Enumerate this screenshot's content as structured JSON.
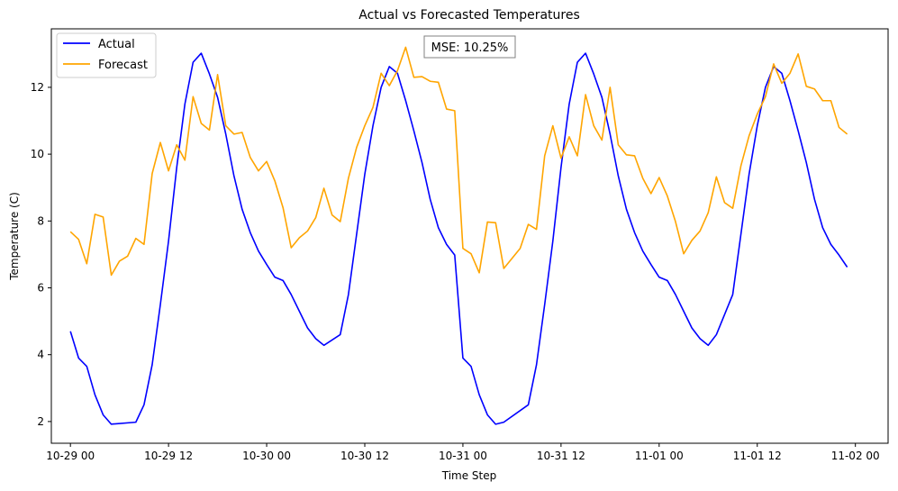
{
  "chart_data": {
    "type": "line",
    "title": "Actual vs Forecasted Temperatures",
    "xlabel": "Time Step",
    "ylabel": "Temperature (C)",
    "xlim": [
      "2024-10-28T21:40",
      "2024-11-02T04:00"
    ],
    "ylim": [
      1.35,
      13.75
    ],
    "x_ticks": [
      {
        "t": "2024-10-29T00:00",
        "label": "10-29 00"
      },
      {
        "t": "2024-10-29T12:00",
        "label": "10-29 12"
      },
      {
        "t": "2024-10-30T00:00",
        "label": "10-30 00"
      },
      {
        "t": "2024-10-30T12:00",
        "label": "10-30 12"
      },
      {
        "t": "2024-10-31T00:00",
        "label": "10-31 00"
      },
      {
        "t": "2024-10-31T12:00",
        "label": "10-31 12"
      },
      {
        "t": "2024-11-01T00:00",
        "label": "11-01 00"
      },
      {
        "t": "2024-11-01T12:00",
        "label": "11-01 12"
      },
      {
        "t": "2024-11-02T00:00",
        "label": "11-02 00"
      }
    ],
    "y_ticks": [
      2,
      4,
      6,
      8,
      10,
      12
    ],
    "y_tick_labels": [
      "2",
      "4",
      "6",
      "8",
      "10",
      "12"
    ],
    "grid": false,
    "legend_position": "upper-left",
    "annotation": "MSE: 10.25%",
    "series": [
      {
        "name": "Actual",
        "color": "#0000ff",
        "x": [
          "2024-10-29T00:00",
          "2024-10-29T01:00",
          "2024-10-29T02:00",
          "2024-10-29T03:00",
          "2024-10-29T04:00",
          "2024-10-29T05:00",
          "2024-10-29T08:00",
          "2024-10-29T09:00",
          "2024-10-29T10:00",
          "2024-10-29T11:00",
          "2024-10-29T12:00",
          "2024-10-29T13:00",
          "2024-10-29T14:00",
          "2024-10-29T15:00",
          "2024-10-29T16:00",
          "2024-10-29T17:00",
          "2024-10-29T18:00",
          "2024-10-29T19:00",
          "2024-10-29T20:00",
          "2024-10-29T21:00",
          "2024-10-29T22:00",
          "2024-10-29T23:00",
          "2024-10-30T00:00",
          "2024-10-30T01:00",
          "2024-10-30T02:00",
          "2024-10-30T03:00",
          "2024-10-30T04:00",
          "2024-10-30T05:00",
          "2024-10-30T06:00",
          "2024-10-30T07:00",
          "2024-10-30T09:00",
          "2024-10-30T10:00",
          "2024-10-30T11:00",
          "2024-10-30T12:00",
          "2024-10-30T13:00",
          "2024-10-30T14:00",
          "2024-10-30T15:00",
          "2024-10-30T16:00",
          "2024-10-30T17:00",
          "2024-10-30T18:00",
          "2024-10-30T19:00",
          "2024-10-30T20:00",
          "2024-10-30T21:00",
          "2024-10-30T22:00",
          "2024-10-30T23:00",
          "2024-10-31T00:00",
          "2024-10-31T01:00",
          "2024-10-31T02:00",
          "2024-10-31T03:00",
          "2024-10-31T04:00",
          "2024-10-31T05:00",
          "2024-10-31T08:00",
          "2024-10-31T09:00",
          "2024-10-31T10:00",
          "2024-10-31T11:00",
          "2024-10-31T12:00",
          "2024-10-31T13:00",
          "2024-10-31T14:00",
          "2024-10-31T15:00",
          "2024-10-31T16:00",
          "2024-10-31T17:00",
          "2024-10-31T18:00",
          "2024-10-31T19:00",
          "2024-10-31T20:00",
          "2024-10-31T21:00",
          "2024-10-31T22:00",
          "2024-10-31T23:00",
          "2024-11-01T00:00",
          "2024-11-01T01:00",
          "2024-11-01T02:00",
          "2024-11-01T03:00",
          "2024-11-01T04:00",
          "2024-11-01T05:00",
          "2024-11-01T06:00",
          "2024-11-01T07:00",
          "2024-11-01T09:00",
          "2024-11-01T10:00",
          "2024-11-01T11:00",
          "2024-11-01T12:00",
          "2024-11-01T13:00",
          "2024-11-01T14:00",
          "2024-11-01T15:00",
          "2024-11-01T16:00",
          "2024-11-01T17:00",
          "2024-11-01T18:00",
          "2024-11-01T19:00",
          "2024-11-01T20:00",
          "2024-11-01T21:00",
          "2024-11-01T22:00",
          "2024-11-01T23:00"
        ],
        "values": [
          4.7,
          3.9,
          3.65,
          2.8,
          2.2,
          1.92,
          1.98,
          2.5,
          3.7,
          5.5,
          7.4,
          9.6,
          11.5,
          12.75,
          13.02,
          12.4,
          11.7,
          10.6,
          9.35,
          8.35,
          7.65,
          7.1,
          6.7,
          6.32,
          6.22,
          5.8,
          5.3,
          4.8,
          4.48,
          4.28,
          4.6,
          5.8,
          7.6,
          9.4,
          10.85,
          12.0,
          12.62,
          12.42,
          11.6,
          10.7,
          9.75,
          8.65,
          7.8,
          7.3,
          6.98,
          3.9,
          3.65,
          2.8,
          2.2,
          1.92,
          1.98,
          2.5,
          3.7,
          5.5,
          7.4,
          9.6,
          11.5,
          12.75,
          13.02,
          12.4,
          11.7,
          10.6,
          9.35,
          8.35,
          7.65,
          7.1,
          6.7,
          6.32,
          6.22,
          5.8,
          5.3,
          4.8,
          4.48,
          4.28,
          4.6,
          5.8,
          7.6,
          9.4,
          10.85,
          12.0,
          12.62,
          12.42,
          11.6,
          10.7,
          9.75,
          8.65,
          7.8,
          7.3,
          6.98,
          6.62
        ]
      },
      {
        "name": "Forecast",
        "color": "#ffa500",
        "x": [
          "2024-10-29T00:00",
          "2024-10-29T01:00",
          "2024-10-29T02:00",
          "2024-10-29T03:00",
          "2024-10-29T04:00",
          "2024-10-29T05:00",
          "2024-10-29T06:00",
          "2024-10-29T07:00",
          "2024-10-29T08:00",
          "2024-10-29T09:00",
          "2024-10-29T10:00",
          "2024-10-29T11:00",
          "2024-10-29T12:00",
          "2024-10-29T13:00",
          "2024-10-29T14:00",
          "2024-10-29T15:00",
          "2024-10-29T16:00",
          "2024-10-29T17:00",
          "2024-10-29T18:00",
          "2024-10-29T19:00",
          "2024-10-29T20:00",
          "2024-10-29T21:00",
          "2024-10-29T22:00",
          "2024-10-29T23:00",
          "2024-10-30T00:00",
          "2024-10-30T01:00",
          "2024-10-30T02:00",
          "2024-10-30T03:00",
          "2024-10-30T04:00",
          "2024-10-30T05:00",
          "2024-10-30T06:00",
          "2024-10-30T07:00",
          "2024-10-30T08:00",
          "2024-10-30T09:00",
          "2024-10-30T10:00",
          "2024-10-30T11:00",
          "2024-10-30T12:00",
          "2024-10-30T13:00",
          "2024-10-30T14:00",
          "2024-10-30T15:00",
          "2024-10-30T16:00",
          "2024-10-30T17:00",
          "2024-10-30T18:00",
          "2024-10-30T19:00",
          "2024-10-30T20:00",
          "2024-10-30T21:00",
          "2024-10-30T22:00",
          "2024-10-30T23:00",
          "2024-10-31T00:00",
          "2024-10-31T01:00",
          "2024-10-31T02:00",
          "2024-10-31T03:00",
          "2024-10-31T04:00",
          "2024-10-31T05:00",
          "2024-10-31T06:00",
          "2024-10-31T07:00",
          "2024-10-31T08:00",
          "2024-10-31T09:00",
          "2024-10-31T10:00",
          "2024-10-31T11:00",
          "2024-10-31T12:00",
          "2024-10-31T13:00",
          "2024-10-31T14:00",
          "2024-10-31T15:00",
          "2024-10-31T16:00",
          "2024-10-31T17:00",
          "2024-10-31T18:00",
          "2024-10-31T19:00",
          "2024-10-31T20:00",
          "2024-10-31T21:00",
          "2024-10-31T22:00",
          "2024-10-31T23:00",
          "2024-11-01T00:00",
          "2024-11-01T01:00",
          "2024-11-01T02:00",
          "2024-11-01T03:00",
          "2024-11-01T04:00",
          "2024-11-01T05:00",
          "2024-11-01T06:00",
          "2024-11-01T07:00",
          "2024-11-01T08:00",
          "2024-11-01T09:00",
          "2024-11-01T10:00",
          "2024-11-01T11:00",
          "2024-11-01T12:00",
          "2024-11-01T13:00",
          "2024-11-01T14:00",
          "2024-11-01T15:00",
          "2024-11-01T16:00",
          "2024-11-01T17:00",
          "2024-11-01T18:00",
          "2024-11-01T19:00",
          "2024-11-01T20:00",
          "2024-11-01T21:00",
          "2024-11-01T22:00",
          "2024-11-01T23:00"
        ],
        "values": [
          7.68,
          7.45,
          6.72,
          8.2,
          8.12,
          6.38,
          6.8,
          6.95,
          7.48,
          7.3,
          9.42,
          10.35,
          9.5,
          10.28,
          9.82,
          11.72,
          10.92,
          10.72,
          12.38,
          10.85,
          10.6,
          10.65,
          9.9,
          9.5,
          9.78,
          9.2,
          8.4,
          7.2,
          7.5,
          7.7,
          8.1,
          8.98,
          8.18,
          7.98,
          9.28,
          10.2,
          10.85,
          11.4,
          12.42,
          12.05,
          12.5,
          13.2,
          12.3,
          12.32,
          12.18,
          12.15,
          11.35,
          11.3,
          7.18,
          7.02,
          6.45,
          7.97,
          7.95,
          6.58,
          6.88,
          7.18,
          7.9,
          7.75,
          9.95,
          10.85,
          9.88,
          10.52,
          9.95,
          11.78,
          10.85,
          10.42,
          12.0,
          10.28,
          9.98,
          9.95,
          9.28,
          8.82,
          9.3,
          8.75,
          7.98,
          7.02,
          7.42,
          7.7,
          8.25,
          9.32,
          8.55,
          8.38,
          9.65,
          10.55,
          11.2,
          11.72,
          12.7,
          12.12,
          12.42,
          13.0,
          12.03,
          11.95,
          11.6,
          11.6,
          10.8,
          10.6
        ]
      }
    ]
  }
}
